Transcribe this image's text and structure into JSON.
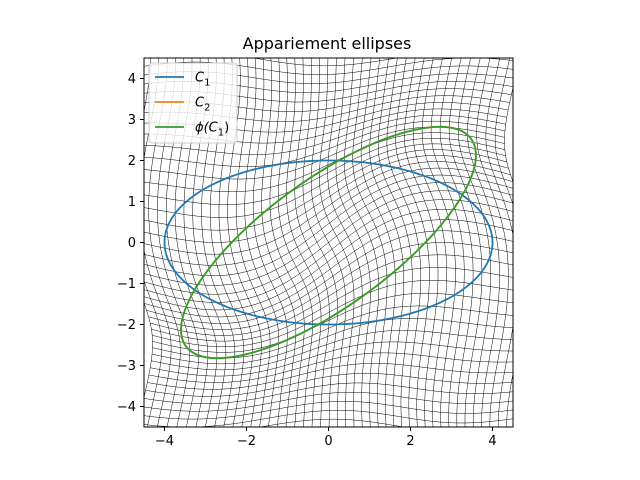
{
  "chart_data": {
    "type": "line",
    "title": "Appariement ellipses",
    "xlabel": "",
    "ylabel": "",
    "xlim": [
      -4.5,
      4.5
    ],
    "ylim": [
      -4.5,
      4.5
    ],
    "xticks": [
      -4,
      -2,
      0,
      2,
      4
    ],
    "yticks": [
      -4,
      -3,
      -2,
      -1,
      0,
      1,
      2,
      3,
      4
    ],
    "xtick_labels": [
      "−4",
      "−2",
      "0",
      "2",
      "4"
    ],
    "ytick_labels": [
      "−4",
      "−3",
      "−2",
      "−1",
      "0",
      "1",
      "2",
      "3",
      "4"
    ],
    "grid": "deformed mesh overlay",
    "legend_position": "upper-left",
    "series": [
      {
        "name": "C_1",
        "legend_base": "C",
        "legend_sub": "1",
        "color": "#1f77b4",
        "shape": "ellipse",
        "center": [
          0,
          0
        ],
        "semi_axes": [
          4,
          2
        ],
        "rotation_deg": 0
      },
      {
        "name": "C_2",
        "legend_base": "C",
        "legend_sub": "2",
        "color": "#ff7f0e",
        "shape": "ellipse",
        "center": [
          0,
          0
        ],
        "semi_axes": [
          4.3,
          1.55
        ],
        "rotation_deg": 36
      },
      {
        "name": "ϕ(C_1)",
        "legend_base": "ϕ(C",
        "legend_sub": "1",
        "legend_after": ")",
        "color": "#2ca02c",
        "shape": "ellipse",
        "center": [
          0,
          0
        ],
        "semi_axes": [
          4.3,
          1.55
        ],
        "rotation_deg": 36
      }
    ]
  }
}
